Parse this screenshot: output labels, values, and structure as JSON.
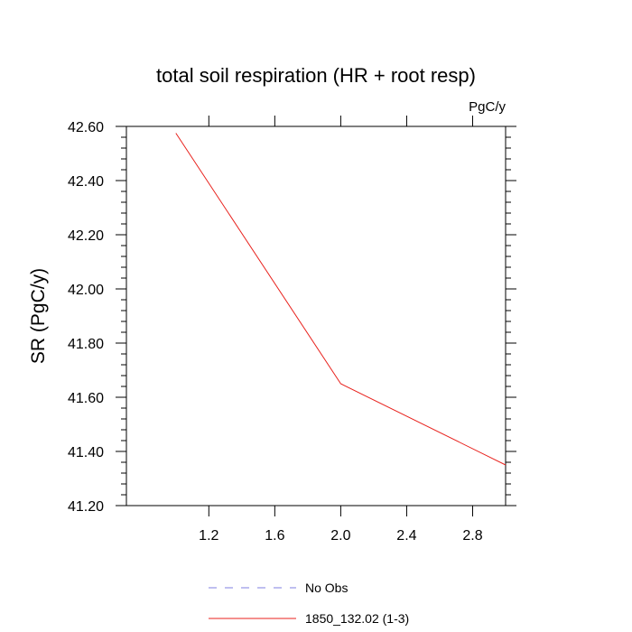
{
  "chart_data": {
    "type": "line",
    "title": "total soil respiration (HR + root resp)",
    "units_label": "PgC/y",
    "ylabel": "SR  (PgC/y)",
    "xlabel": "",
    "xlim": [
      0.7,
      3.0
    ],
    "ylim": [
      41.2,
      42.6
    ],
    "x_ticks": [
      1.2,
      1.6,
      2.0,
      2.4,
      2.8
    ],
    "x_tick_labels": [
      "1.2",
      "1.6",
      "2.0",
      "2.4",
      "2.8"
    ],
    "y_ticks": [
      41.2,
      41.4,
      41.6,
      41.8,
      42.0,
      42.2,
      42.4,
      42.6
    ],
    "y_tick_labels": [
      "41.20",
      "41.40",
      "41.60",
      "41.80",
      "42.00",
      "42.20",
      "42.40",
      "42.60"
    ],
    "grid": false,
    "legend_position": "bottom",
    "series": [
      {
        "name": "No Obs",
        "style": "dashed",
        "color": "#7f7fe0",
        "x": [],
        "y": []
      },
      {
        "name": "1850_132.02 (1-3)",
        "style": "solid",
        "color": "#e8211c",
        "x": [
          1.0,
          2.0,
          3.0
        ],
        "y": [
          42.575,
          41.65,
          41.35
        ]
      }
    ]
  }
}
